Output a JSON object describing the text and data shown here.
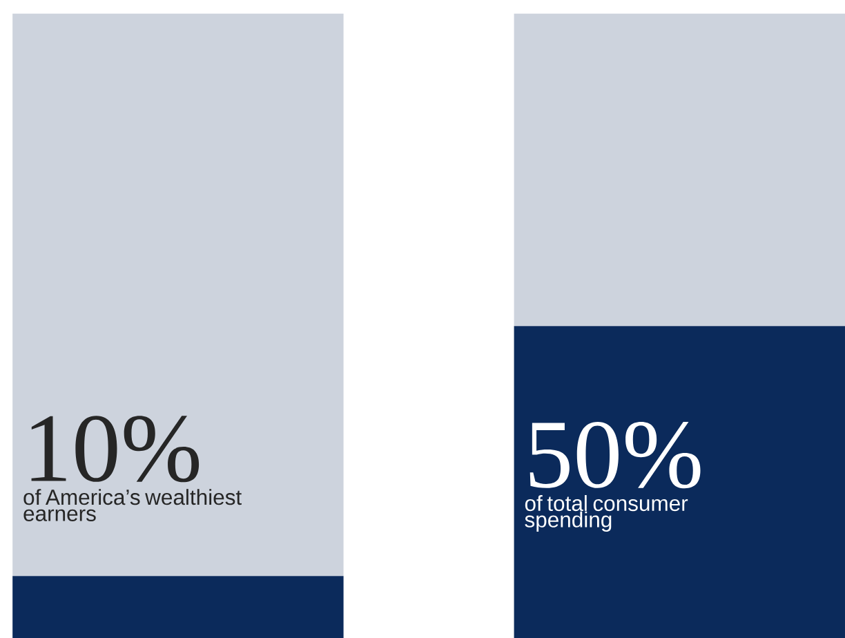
{
  "chart_data": {
    "type": "bar",
    "stacked": true,
    "categories": [
      null,
      null
    ],
    "series": [
      {
        "color": "#0b2a5b",
        "values": [
          10,
          50
        ],
        "value_labels": [
          "10%",
          "50%"
        ]
      },
      {
        "color": "#cdd3dd",
        "values": [
          90,
          50
        ]
      }
    ],
    "annotations": [
      "of America’s wealthiest earners",
      "of total consumer spending"
    ]
  }
}
